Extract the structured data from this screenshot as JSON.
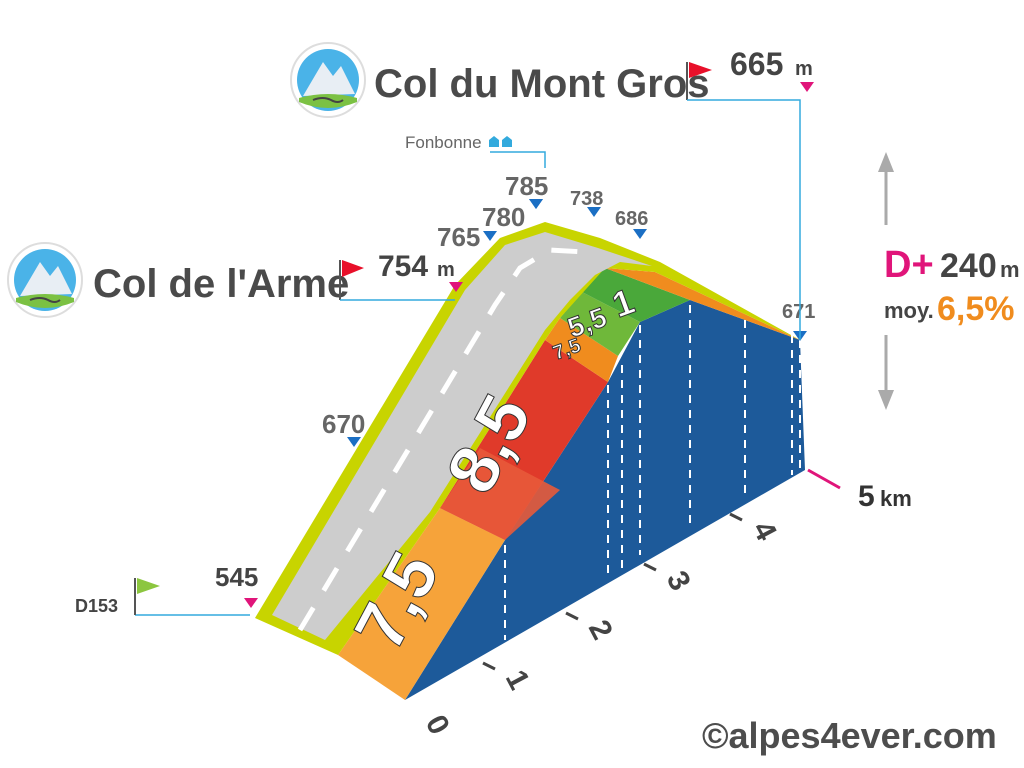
{
  "chart_data": {
    "type": "area",
    "title": "",
    "start": {
      "name": "D153",
      "altitude": "545"
    },
    "pass1": {
      "name": "Col de l'Arme",
      "altitude": "754",
      "unit": "m"
    },
    "pass2": {
      "name": "Col du Mont Gros",
      "altitude": "665",
      "unit": "m"
    },
    "hamlet": {
      "name": "Fonbonne"
    },
    "distance": {
      "value": "5",
      "unit": "km"
    },
    "km_ticks": [
      "0",
      "1",
      "2",
      "3",
      "4"
    ],
    "segments": [
      {
        "km_start": 0,
        "km_end": 1,
        "gradient": "7,5",
        "color": "#f08c1e"
      },
      {
        "km_start": 1,
        "km_end": 2,
        "gradient": "8,5",
        "color": "#e03a2a"
      },
      {
        "km_start": 2,
        "km_end": 2.2,
        "gradient": "7,5",
        "color": "#f08c1e"
      },
      {
        "km_start": 2.2,
        "km_end": 2.6,
        "gradient": "5,5",
        "color": "#6fb83a"
      },
      {
        "km_start": 2.6,
        "km_end": 3.2,
        "gradient": "1",
        "color": "#4aa83a"
      },
      {
        "km_start": 3.2,
        "km_end": 4.8,
        "gradient": "",
        "color": "#f08c1e"
      }
    ],
    "profile": [
      {
        "km": 0,
        "alt": 545
      },
      {
        "km": 1,
        "alt": 670
      },
      {
        "km": 1.9,
        "alt": 754
      },
      {
        "km": 2.05,
        "alt": 765
      },
      {
        "km": 2.25,
        "alt": 780
      },
      {
        "km": 2.45,
        "alt": 785
      },
      {
        "km": 2.85,
        "alt": 738
      },
      {
        "km": 3.3,
        "alt": 686
      },
      {
        "km": 4.8,
        "alt": 671
      }
    ],
    "alt_labels": [
      {
        "text": "670"
      },
      {
        "text": "765"
      },
      {
        "text": "780"
      },
      {
        "text": "785"
      },
      {
        "text": "738"
      },
      {
        "text": "686"
      },
      {
        "text": "671"
      }
    ],
    "stats": {
      "gain_label": "D+",
      "gain_value": "240",
      "gain_unit": "m",
      "avg_label": "moy.",
      "avg_value": "6,5%"
    },
    "colors": {
      "road_edge": "#c8d400",
      "road": "#cccccc",
      "side": "#1d5a9a",
      "leader": "#33aadd",
      "marker_blue": "#1b6fc4",
      "marker_pink": "#e0157a",
      "flag_red": "#e8102a",
      "flag_green": "#8cc63f",
      "text_grey": "#555555",
      "gain_pink": "#e0157a",
      "avg_orange": "#f08c1e"
    },
    "credit": "©alpes4ever.com"
  }
}
